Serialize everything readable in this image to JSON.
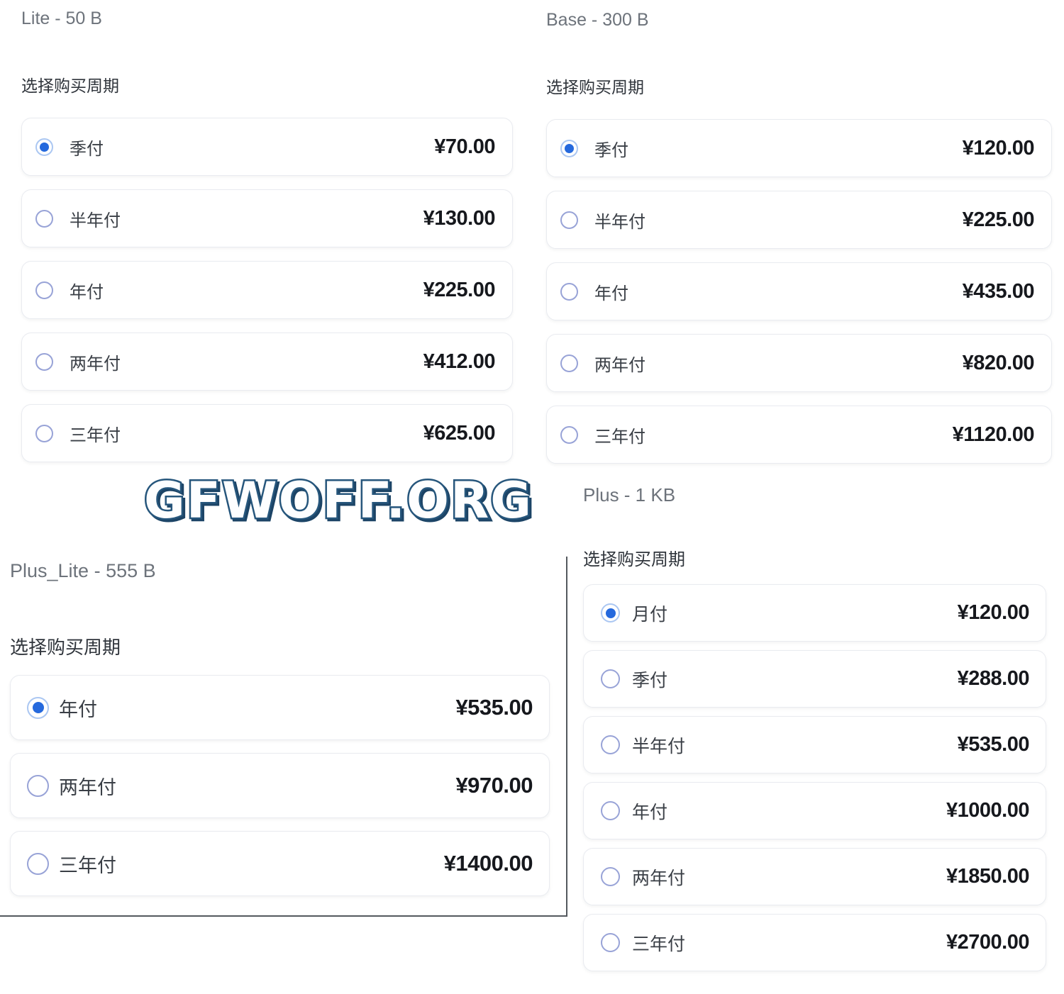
{
  "watermark": "GFWOFF.ORG",
  "colors": {
    "radio_selected_dot": "#2569dd",
    "radio_selected_ring": "#abc7f2",
    "radio_unselected_border": "#98a3d7",
    "price_text": "#16181d",
    "plan_title_text": "#6d737b",
    "panel_border": "#54595e",
    "watermark_stroke": "#26567c"
  },
  "plans": [
    {
      "title": "Lite - 50 B",
      "cycle_label": "选择购买周期",
      "options": [
        {
          "label": "季付",
          "price": "¥70.00",
          "selected": true
        },
        {
          "label": "半年付",
          "price": "¥130.00",
          "selected": false
        },
        {
          "label": "年付",
          "price": "¥225.00",
          "selected": false
        },
        {
          "label": "两年付",
          "price": "¥412.00",
          "selected": false
        },
        {
          "label": "三年付",
          "price": "¥625.00",
          "selected": false
        }
      ]
    },
    {
      "title": "Base - 300 B",
      "cycle_label": "选择购买周期",
      "options": [
        {
          "label": "季付",
          "price": "¥120.00",
          "selected": true
        },
        {
          "label": "半年付",
          "price": "¥225.00",
          "selected": false
        },
        {
          "label": "年付",
          "price": "¥435.00",
          "selected": false
        },
        {
          "label": "两年付",
          "price": "¥820.00",
          "selected": false
        },
        {
          "label": "三年付",
          "price": "¥1120.00",
          "selected": false
        }
      ]
    },
    {
      "title": "Plus_Lite - 555 B",
      "cycle_label": "选择购买周期",
      "options": [
        {
          "label": "年付",
          "price": "¥535.00",
          "selected": true
        },
        {
          "label": "两年付",
          "price": "¥970.00",
          "selected": false
        },
        {
          "label": "三年付",
          "price": "¥1400.00",
          "selected": false
        }
      ]
    },
    {
      "title": "Plus - 1 KB",
      "cycle_label": "选择购买周期",
      "options": [
        {
          "label": "月付",
          "price": "¥120.00",
          "selected": true
        },
        {
          "label": "季付",
          "price": "¥288.00",
          "selected": false
        },
        {
          "label": "半年付",
          "price": "¥535.00",
          "selected": false
        },
        {
          "label": "年付",
          "price": "¥1000.00",
          "selected": false
        },
        {
          "label": "两年付",
          "price": "¥1850.00",
          "selected": false
        },
        {
          "label": "三年付",
          "price": "¥2700.00",
          "selected": false
        }
      ]
    }
  ]
}
